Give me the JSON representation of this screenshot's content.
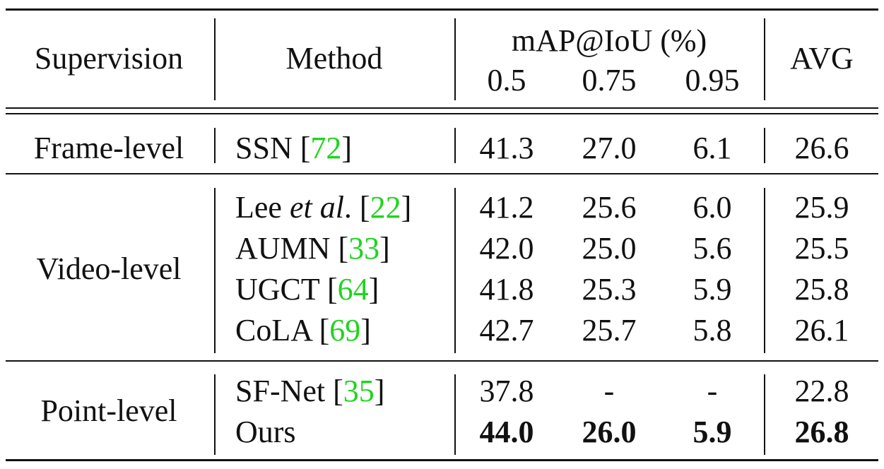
{
  "table": {
    "headers": {
      "supervision": "Supervision",
      "method": "Method",
      "map_group": "mAP@IoU (%)",
      "iou_thresholds": [
        "0.5",
        "0.75",
        "0.95"
      ],
      "avg": "AVG"
    },
    "groups": [
      {
        "supervision": "Frame-level",
        "rows": [
          {
            "method": "SSN",
            "method_suffix": "",
            "ref": "72",
            "values": [
              "41.3",
              "27.0",
              "6.1"
            ],
            "avg": "26.6"
          }
        ]
      },
      {
        "supervision": "Video-level",
        "rows": [
          {
            "method": "Lee ",
            "method_italic": "et al",
            "method_suffix": ".",
            "ref": "22",
            "values": [
              "41.2",
              "25.6",
              "6.0"
            ],
            "avg": "25.9"
          },
          {
            "method": "AUMN",
            "method_suffix": "",
            "ref": "33",
            "values": [
              "42.0",
              "25.0",
              "5.6"
            ],
            "avg": "25.5"
          },
          {
            "method": "UGCT",
            "method_suffix": "",
            "ref": "64",
            "values": [
              "41.8",
              "25.3",
              "5.9"
            ],
            "avg": "25.8"
          },
          {
            "method": "CoLA",
            "method_suffix": "",
            "ref": "69",
            "values": [
              "42.7",
              "25.7",
              "5.8"
            ],
            "avg": "26.1"
          }
        ]
      },
      {
        "supervision": "Point-level",
        "rows": [
          {
            "method": "SF-Net",
            "method_suffix": "",
            "ref": "35",
            "values": [
              "37.8",
              "-",
              "-"
            ],
            "avg": "22.8"
          },
          {
            "method": "Ours",
            "values": [
              "44.0",
              "26.0",
              "5.9"
            ],
            "avg": "26.8",
            "bold": true
          }
        ]
      }
    ],
    "colors": {
      "citation": "#1fd41f",
      "text": "#111111"
    }
  }
}
